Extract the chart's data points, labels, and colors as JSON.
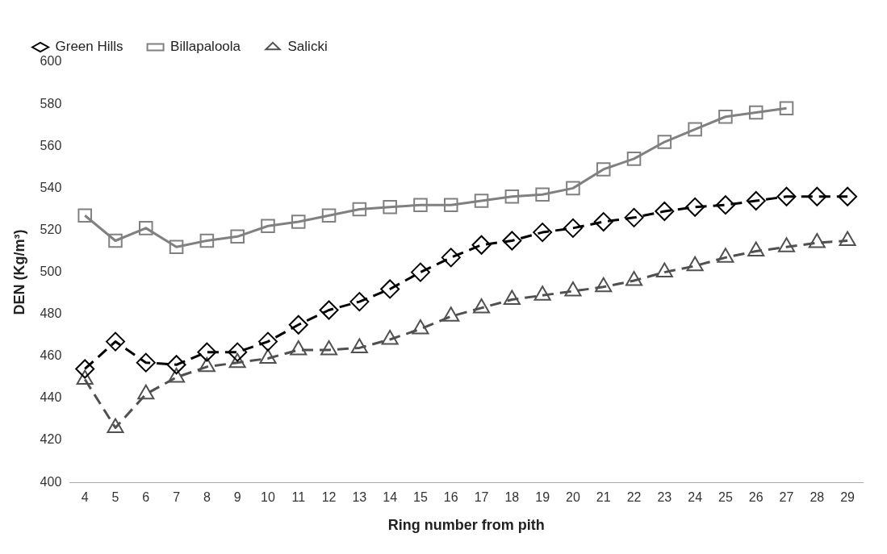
{
  "chart_data": {
    "type": "line",
    "xlabel": "Ring number from pith",
    "ylabel": "DEN (Kg/m³)",
    "categories": [
      "4",
      "5",
      "6",
      "7",
      "8",
      "9",
      "10",
      "11",
      "12",
      "13",
      "14",
      "15",
      "16",
      "17",
      "18",
      "19",
      "20",
      "21",
      "22",
      "23",
      "24",
      "25",
      "26",
      "27",
      "28",
      "29"
    ],
    "ylim": [
      400,
      600
    ],
    "yticks": [
      400,
      420,
      440,
      460,
      480,
      500,
      520,
      540,
      560,
      580,
      600
    ],
    "grid": false,
    "legend": "top",
    "series": [
      {
        "name": "Green Hills",
        "color": "#000000",
        "marker": "diamond",
        "line_style": "dashed",
        "values": [
          454,
          467,
          457,
          456,
          462,
          462,
          467,
          475,
          482,
          486,
          492,
          500,
          507,
          513,
          515,
          519,
          521,
          524,
          526,
          529,
          531,
          532,
          534,
          536,
          536,
          536
        ]
      },
      {
        "name": "Billapaloola",
        "color": "#808080",
        "marker": "square",
        "line_style": "solid",
        "values": [
          527,
          515,
          521,
          512,
          515,
          517,
          522,
          524,
          527,
          530,
          531,
          532,
          532,
          534,
          536,
          537,
          540,
          549,
          554,
          562,
          568,
          574,
          576,
          578,
          null,
          null
        ]
      },
      {
        "name": "Salicki",
        "color": "#505050",
        "marker": "triangle",
        "line_style": "dashed",
        "values": [
          449,
          426,
          442,
          450,
          455,
          457,
          459,
          463,
          463,
          464,
          468,
          473,
          479,
          483,
          487,
          489,
          491,
          493,
          496,
          500,
          503,
          507,
          510,
          512,
          514,
          515
        ]
      }
    ]
  }
}
